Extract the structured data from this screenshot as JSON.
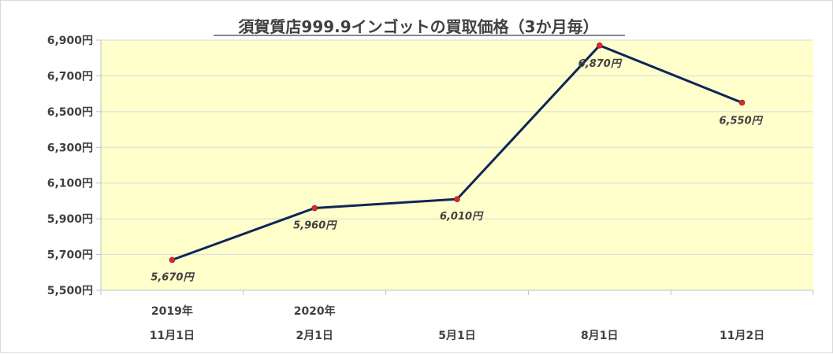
{
  "chart_data": {
    "type": "line",
    "title": "須賀質店999.9インゴットの買取価格（3か月毎）",
    "xlabel": "",
    "ylabel": "",
    "categories": [
      [
        "2019年",
        "11月1日"
      ],
      [
        "2020年",
        "2月1日"
      ],
      [
        "",
        "5月1日"
      ],
      [
        "",
        "8月1日"
      ],
      [
        "",
        "11月2日"
      ]
    ],
    "series": [
      {
        "values": [
          5670,
          5960,
          6010,
          6870,
          6550
        ],
        "data_labels": [
          "5,670円",
          "5,960円",
          "6,010円",
          "6,870円",
          "6,550円"
        ]
      }
    ],
    "ylim": [
      5500,
      6900
    ],
    "yticks": [
      5500,
      5700,
      5900,
      6100,
      6300,
      6500,
      6700,
      6900
    ],
    "ytick_labels": [
      "5,500円",
      "5,700円",
      "5,900円",
      "6,100円",
      "6,300円",
      "6,500円",
      "6,700円",
      "6,900円"
    ],
    "grid": true,
    "legend": "none",
    "colors": {
      "plot_background": "#ffffcc",
      "line": "#0f2557",
      "marker": "#e0262b",
      "gridline": "#d9d9d9",
      "text": "#404040"
    }
  }
}
